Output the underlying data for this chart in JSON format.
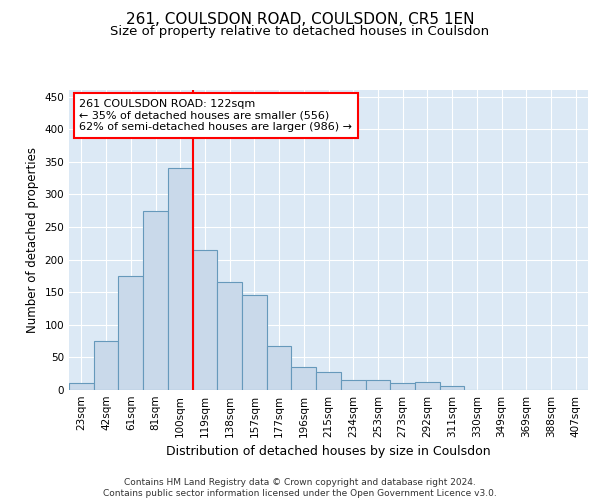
{
  "title": "261, COULSDON ROAD, COULSDON, CR5 1EN",
  "subtitle": "Size of property relative to detached houses in Coulsdon",
  "xlabel": "Distribution of detached houses by size in Coulsdon",
  "ylabel": "Number of detached properties",
  "bar_labels": [
    "23sqm",
    "42sqm",
    "61sqm",
    "81sqm",
    "100sqm",
    "119sqm",
    "138sqm",
    "157sqm",
    "177sqm",
    "196sqm",
    "215sqm",
    "234sqm",
    "253sqm",
    "273sqm",
    "292sqm",
    "311sqm",
    "330sqm",
    "349sqm",
    "369sqm",
    "388sqm",
    "407sqm"
  ],
  "bar_values": [
    10,
    75,
    175,
    275,
    340,
    215,
    165,
    145,
    68,
    35,
    28,
    15,
    15,
    10,
    12,
    6,
    0,
    0,
    0,
    0,
    0
  ],
  "bar_color": "#c9d9ea",
  "bar_edge_color": "#6699bb",
  "vline_x": 4.5,
  "vline_color": "red",
  "annotation_line1": "261 COULSDON ROAD: 122sqm",
  "annotation_line2": "← 35% of detached houses are smaller (556)",
  "annotation_line3": "62% of semi-detached houses are larger (986) →",
  "annotation_box_color": "white",
  "annotation_box_edge_color": "red",
  "ylim": [
    0,
    460
  ],
  "yticks": [
    0,
    50,
    100,
    150,
    200,
    250,
    300,
    350,
    400,
    450
  ],
  "footer_line1": "Contains HM Land Registry data © Crown copyright and database right 2024.",
  "footer_line2": "Contains public sector information licensed under the Open Government Licence v3.0.",
  "title_fontsize": 11,
  "subtitle_fontsize": 9.5,
  "xlabel_fontsize": 9,
  "ylabel_fontsize": 8.5,
  "tick_fontsize": 7.5,
  "footer_fontsize": 6.5,
  "annotation_fontsize": 8,
  "plot_bg_color": "#dce9f5"
}
